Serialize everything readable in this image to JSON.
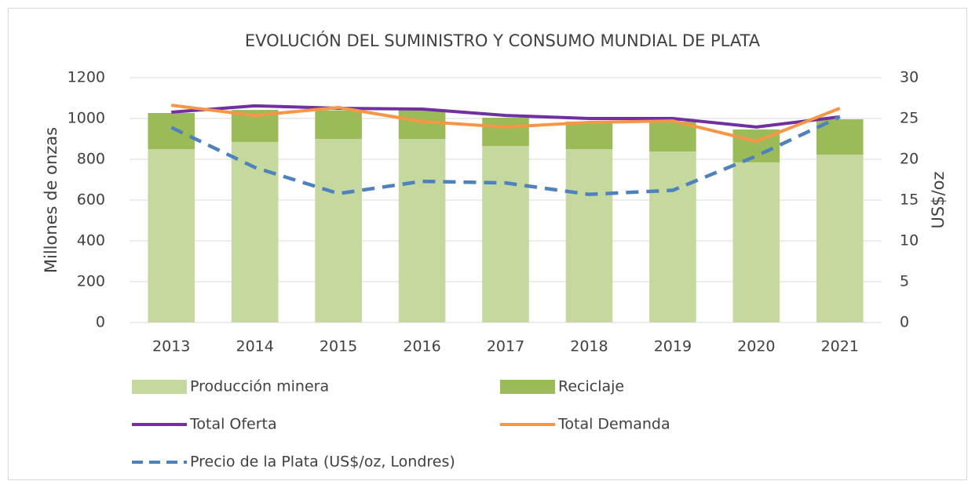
{
  "chart_data": {
    "type": "combo",
    "title": "EVOLUCIÓN DEL SUMINISTRO Y CONSUMO MUNDIAL DE PLATA",
    "y_label": "Millones de onzas",
    "y2_label": "US$/oz",
    "categories": [
      "2013",
      "2014",
      "2015",
      "2016",
      "2017",
      "2018",
      "2019",
      "2020",
      "2021"
    ],
    "series": [
      {
        "name": "Producción minera",
        "type": "bar",
        "stack": true,
        "color": "#c5d89e",
        "values": [
          850,
          885,
          900,
          900,
          865,
          850,
          838,
          785,
          823
        ]
      },
      {
        "name": "Reciclaje",
        "type": "bar",
        "stack": true,
        "color": "#9bbb59",
        "values": [
          177,
          157,
          140,
          140,
          139,
          135,
          147,
          161,
          173
        ]
      },
      {
        "name": "Total Oferta",
        "type": "line",
        "color": "#7030a0",
        "values": [
          1031,
          1062,
          1050,
          1046,
          1015,
          1000,
          1000,
          958,
          1008
        ]
      },
      {
        "name": "Total Demanda",
        "type": "line",
        "color": "#f79646",
        "values": [
          1065,
          1015,
          1054,
          985,
          958,
          981,
          988,
          888,
          1050
        ]
      },
      {
        "name": "Precio de la Plata (US$/oz, Londres)",
        "type": "line",
        "dashed": true,
        "axis": "y2",
        "color": "#4f81bd",
        "values": [
          23.9,
          19.0,
          15.8,
          17.3,
          17.1,
          15.7,
          16.2,
          20.4,
          25.2
        ]
      }
    ],
    "ylim": [
      0,
      1200
    ],
    "yticks": [
      0,
      200,
      400,
      600,
      800,
      1000,
      1200
    ],
    "y2lim": [
      0,
      30
    ],
    "y2ticks": [
      0,
      5,
      10,
      15,
      20,
      25,
      30
    ],
    "grid": true,
    "legend": "bottom"
  }
}
